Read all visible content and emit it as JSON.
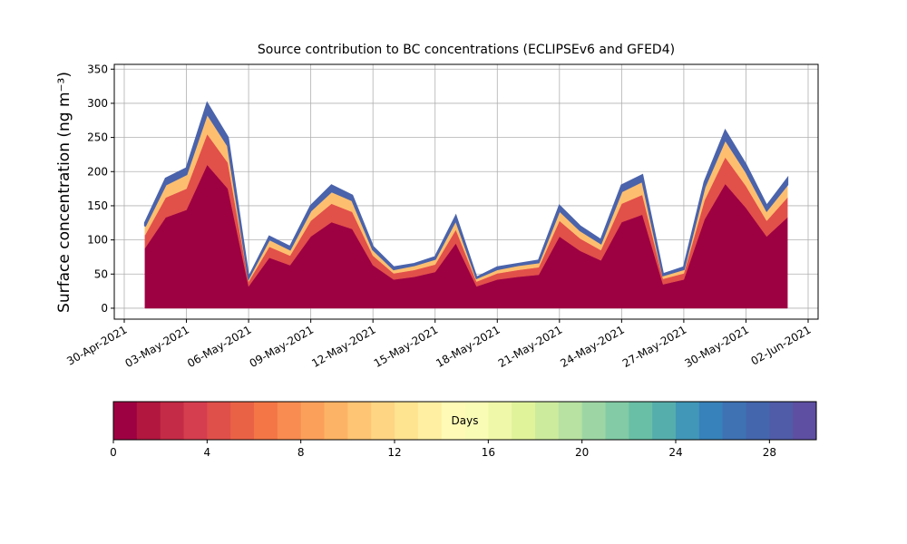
{
  "chart_data": {
    "type": "stacked_area",
    "title": "Source contribution to BC concentrations (ECLIPSEv6 and GFED4)",
    "ylabel": "Surface concentration (ng m⁻³)",
    "x": [
      "01-May-2021",
      "02-May-2021",
      "03-May-2021",
      "04-May-2021",
      "05-May-2021",
      "06-May-2021",
      "07-May-2021",
      "08-May-2021",
      "09-May-2021",
      "10-May-2021",
      "11-May-2021",
      "12-May-2021",
      "13-May-2021",
      "14-May-2021",
      "15-May-2021",
      "16-May-2021",
      "17-May-2021",
      "18-May-2021",
      "19-May-2021",
      "20-May-2021",
      "21-May-2021",
      "22-May-2021",
      "23-May-2021",
      "24-May-2021",
      "25-May-2021",
      "26-May-2021",
      "27-May-2021",
      "28-May-2021",
      "29-May-2021",
      "30-May-2021",
      "31-May-2021",
      "01-Jun-2021"
    ],
    "series": [
      {
        "color": "#9e0142",
        "values": [
          88,
          133,
          144,
          210,
          175,
          32,
          74,
          63,
          105,
          126,
          116,
          63,
          42,
          46,
          53,
          95,
          32,
          42,
          46,
          49,
          105,
          84,
          70,
          126,
          137,
          35,
          42,
          130,
          182,
          147,
          105,
          133
        ]
      },
      {
        "color": "#e2504a",
        "values": [
          19,
          29,
          31,
          45,
          38,
          7,
          16,
          14,
          23,
          27,
          25,
          14,
          9,
          10,
          11,
          20,
          7,
          9,
          10,
          11,
          23,
          18,
          15,
          27,
          29,
          8,
          9,
          28,
          39,
          32,
          23,
          29
        ]
      },
      {
        "color": "#fdbf6f",
        "values": [
          13,
          19,
          21,
          30,
          25,
          5,
          11,
          9,
          15,
          18,
          17,
          9,
          6,
          7,
          8,
          14,
          5,
          6,
          7,
          7,
          15,
          12,
          10,
          18,
          20,
          5,
          6,
          19,
          26,
          21,
          15,
          19
        ]
      },
      {
        "color": "#4a63ab",
        "values": [
          5,
          9,
          9,
          15,
          12,
          1,
          4,
          4,
          7,
          9,
          7,
          4,
          3,
          2,
          3,
          6,
          1,
          3,
          2,
          3,
          7,
          6,
          5,
          9,
          9,
          2,
          3,
          8,
          13,
          10,
          7,
          9
        ]
      }
    ],
    "xlim": [
      "30-Apr-2021",
      "02-Jun-2021"
    ],
    "xticks": [
      "30-Apr-2021",
      "03-May-2021",
      "06-May-2021",
      "09-May-2021",
      "12-May-2021",
      "15-May-2021",
      "18-May-2021",
      "21-May-2021",
      "24-May-2021",
      "27-May-2021",
      "30-May-2021",
      "02-Jun-2021"
    ],
    "ylim": [
      -16,
      357
    ],
    "yticks": [
      0,
      50,
      100,
      150,
      200,
      250,
      300,
      350
    ],
    "grid": true,
    "colorbar": {
      "label": "Days",
      "lim": [
        0,
        30
      ],
      "ticks": [
        0,
        4,
        8,
        12,
        16,
        20,
        24,
        28
      ],
      "colors": [
        "#9e0142",
        "#b1173f",
        "#c42b46",
        "#d53e4f",
        "#e0504a",
        "#ea6246",
        "#f47646",
        "#f88c51",
        "#fba05b",
        "#fdb365",
        "#fdc574",
        "#fed583",
        "#fee391",
        "#feefa2",
        "#fffab5",
        "#f9fcb5",
        "#eff8a8",
        "#e0f39b",
        "#cdeb9d",
        "#b7e2a1",
        "#9dd6a4",
        "#82cba6",
        "#69bfa5",
        "#56aeac",
        "#4097b7",
        "#3782ba",
        "#3e72b3",
        "#4466ad",
        "#505ca8",
        "#5e4fa2"
      ]
    }
  }
}
